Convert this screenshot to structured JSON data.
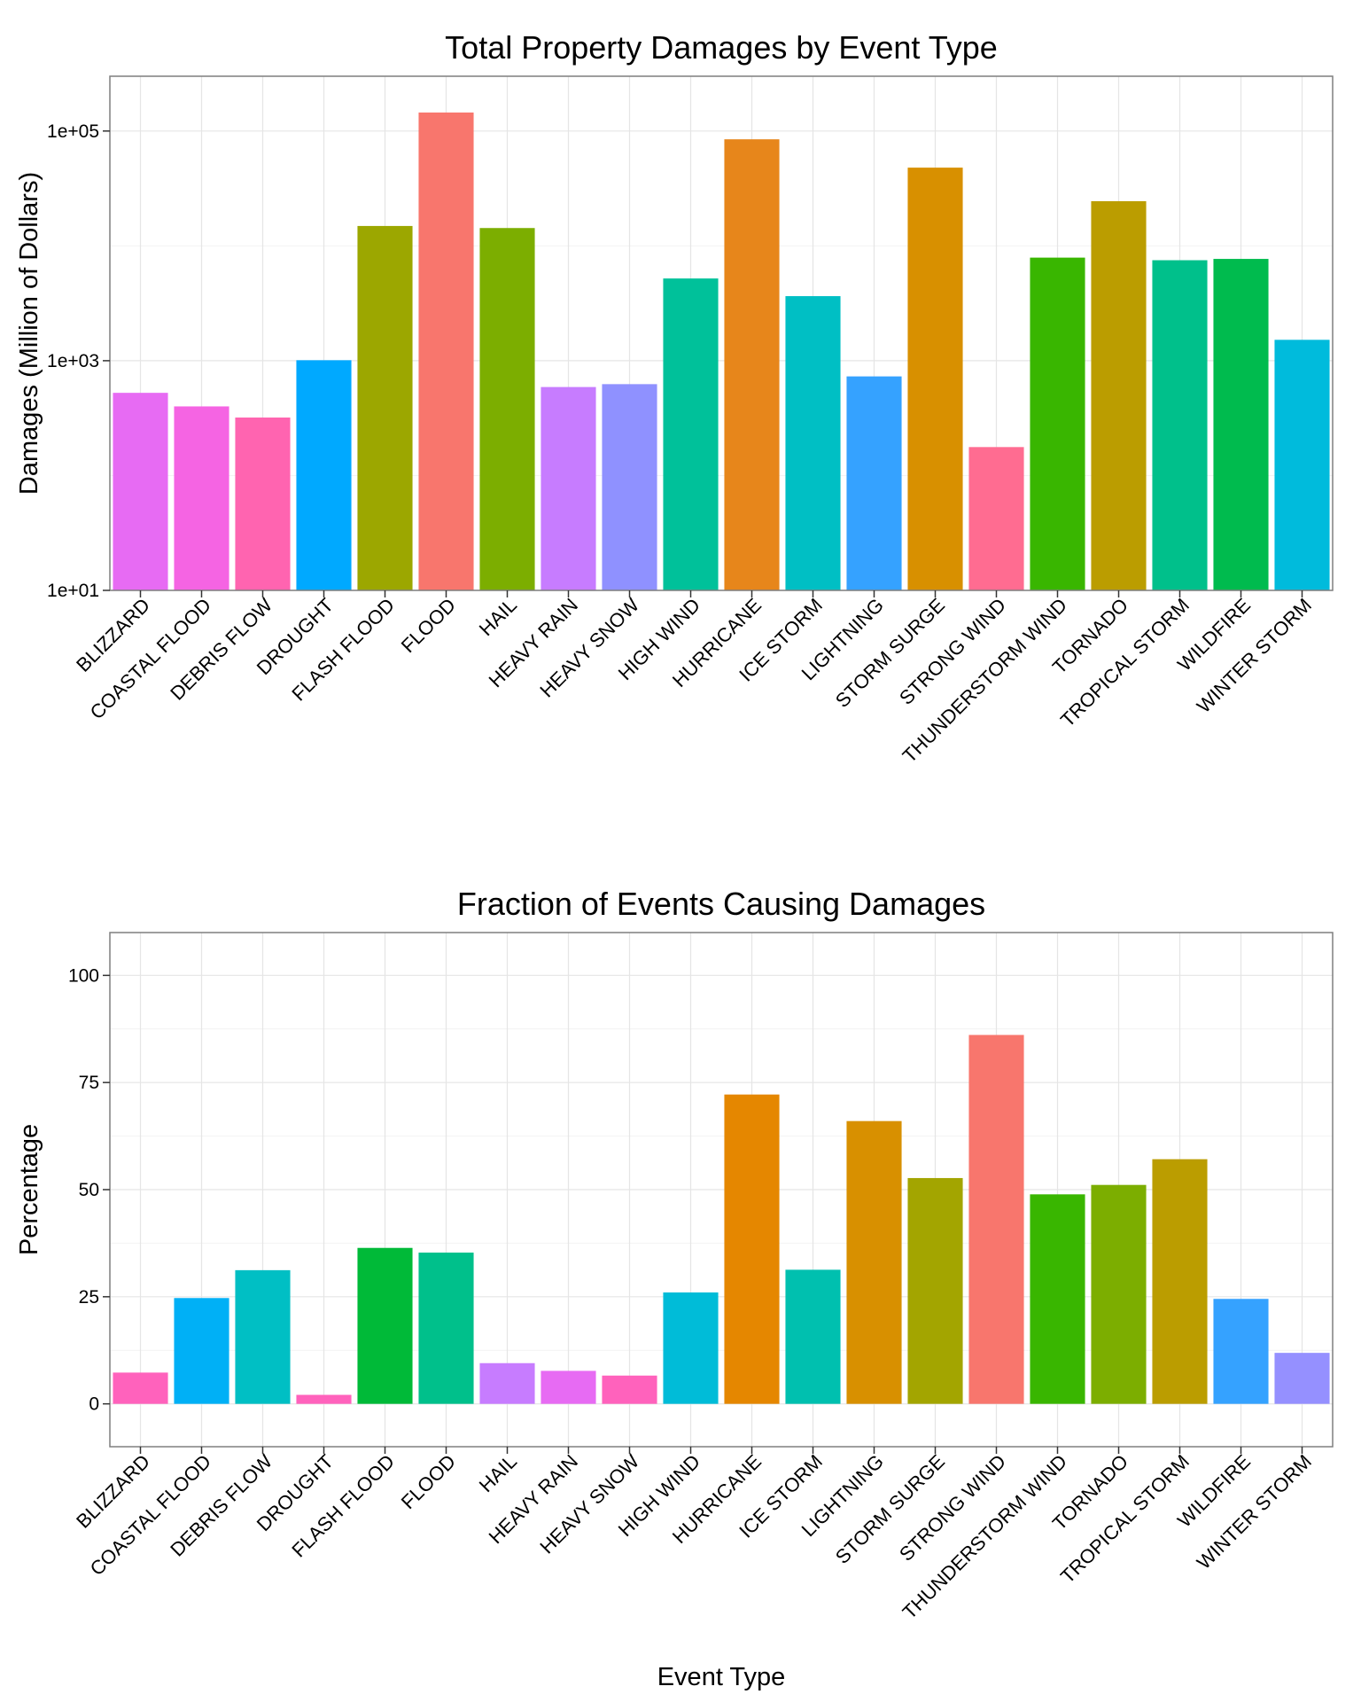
{
  "chart_data": [
    {
      "type": "bar",
      "title": "Total Property Damages by Event Type",
      "xlabel": "",
      "ylabel": "Damages (Million of Dollars)",
      "yscale": "log10",
      "ylim": [
        10,
        300000
      ],
      "yticks": [
        10,
        1000,
        100000
      ],
      "ytick_labels": [
        "1e+01",
        "1e+03",
        "1e+05"
      ],
      "grid": true,
      "categories": [
        "BLIZZARD",
        "COASTAL FLOOD",
        "DEBRIS FLOW",
        "DROUGHT",
        "FLASH FLOOD",
        "FLOOD",
        "HAIL",
        "HEAVY RAIN",
        "HEAVY SNOW",
        "HIGH WIND",
        "HURRICANE",
        "ICE STORM",
        "LIGHTNING",
        "STORM SURGE",
        "STRONG WIND",
        "THUNDERSTORM WIND",
        "TORNADO",
        "TROPICAL STORM",
        "WILDFIRE",
        "WINTER STORM"
      ],
      "values": [
        525,
        400,
        320,
        1010,
        14900,
        145000,
        14300,
        590,
        625,
        5200,
        84700,
        3650,
        730,
        48000,
        177,
        7900,
        24500,
        7500,
        7700,
        1520
      ],
      "colors": [
        "#E76BF3",
        "#F564E3",
        "#FF64B0",
        "#00A9FF",
        "#9CA700",
        "#F8766D",
        "#7CAE00",
        "#C77CFF",
        "#8F91FF",
        "#00C19A",
        "#E7861B",
        "#00BFC4",
        "#35A2FF",
        "#D89000",
        "#FF6C91",
        "#39B600",
        "#BB9D00",
        "#00C08B",
        "#00BB4E",
        "#00BBDC"
      ]
    },
    {
      "type": "bar",
      "title": "Fraction of Events Causing Damages",
      "xlabel": "Event Type",
      "ylabel": "Percentage",
      "yscale": "linear",
      "ylim": [
        -10,
        110
      ],
      "yticks": [
        0,
        25,
        50,
        75,
        100
      ],
      "ytick_labels": [
        "0",
        "25",
        "50",
        "75",
        "100"
      ],
      "grid": true,
      "categories": [
        "BLIZZARD",
        "COASTAL FLOOD",
        "DEBRIS FLOW",
        "DROUGHT",
        "FLASH FLOOD",
        "FLOOD",
        "HAIL",
        "HEAVY RAIN",
        "HEAVY SNOW",
        "HIGH WIND",
        "HURRICANE",
        "ICE STORM",
        "LIGHTNING",
        "STORM SURGE",
        "STRONG WIND",
        "THUNDERSTORM WIND",
        "TORNADO",
        "TROPICAL STORM",
        "WILDFIRE",
        "WINTER STORM"
      ],
      "values": [
        7.3,
        24.7,
        31.2,
        2.1,
        36.4,
        35.3,
        9.5,
        7.7,
        6.6,
        26.0,
        72.2,
        31.3,
        66.0,
        52.7,
        86.1,
        48.9,
        51.1,
        57.1,
        24.5,
        11.9
      ],
      "colors": [
        "#FF62BC",
        "#00B0F6",
        "#00BFC4",
        "#FF62BC",
        "#00BA38",
        "#00C08B",
        "#C77CFF",
        "#E76BF3",
        "#FF62BC",
        "#00BCD8",
        "#E58700",
        "#00C0AF",
        "#D89000",
        "#A3A500",
        "#F8766D",
        "#39B600",
        "#7CAE00",
        "#BB9D00",
        "#35A2FF",
        "#9590FF"
      ]
    }
  ]
}
